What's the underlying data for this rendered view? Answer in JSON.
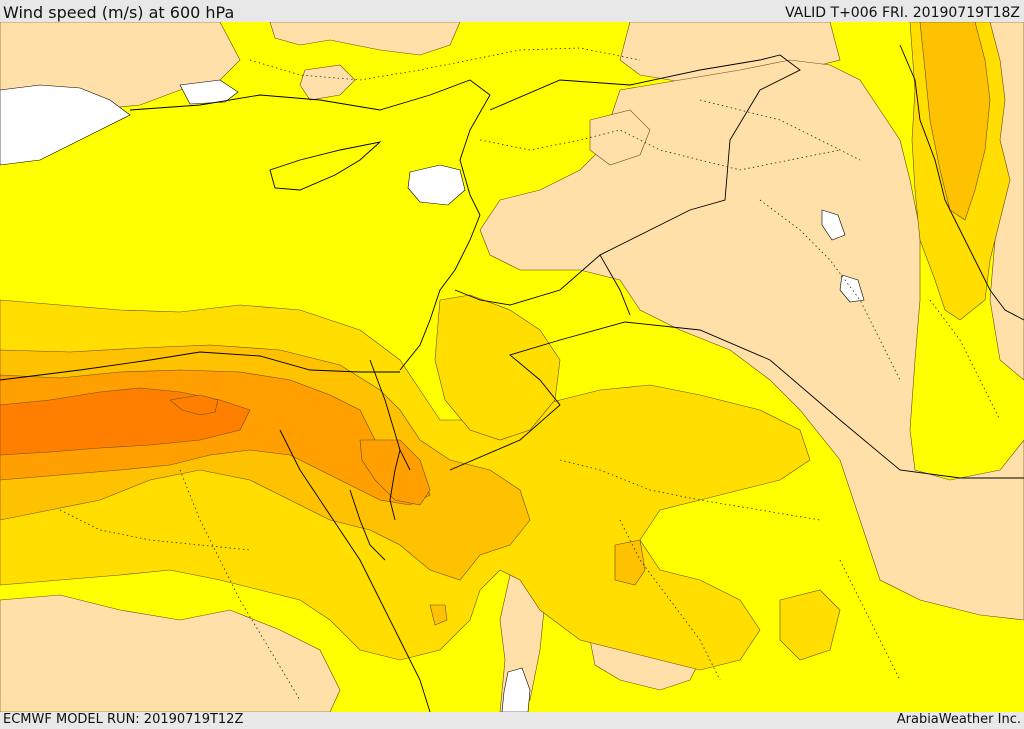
{
  "header": {
    "title": "Wind speed (m/s) at 600 hPa",
    "valid_time": "VALID T+006 FRI. 20190719T18Z"
  },
  "footer": {
    "model_run": "ECMWF MODEL RUN: 20190719T12Z",
    "credit": "ArabiaWeather Inc."
  },
  "map": {
    "variable": "wind speed",
    "units": "m/s",
    "level_hpa": 600,
    "fill_colors": {
      "background": "#ffff00",
      "low_wind": "#ffe0a8",
      "moderate": "#ffde00",
      "moderate_high": "#ffc200",
      "high": "#ff9f00",
      "highest": "#ff8000",
      "no_data": "#ffffff"
    },
    "line_colors": {
      "coast_border": "#000000",
      "contour": "#5a3a10"
    }
  }
}
